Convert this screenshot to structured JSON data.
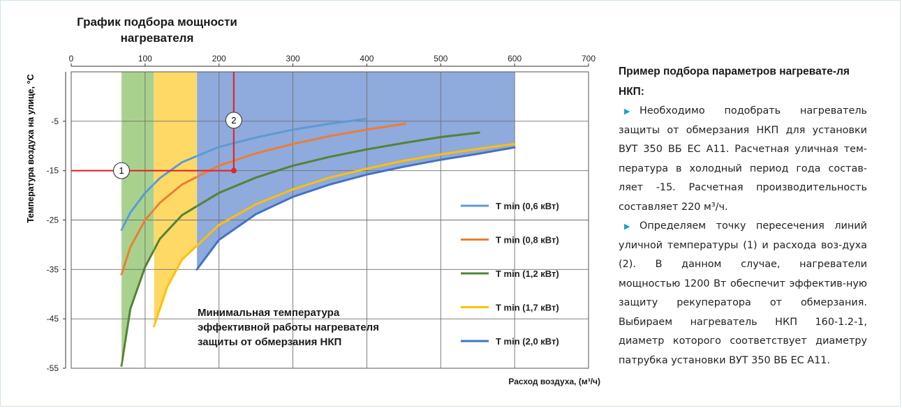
{
  "chart_data": {
    "type": "area",
    "title_lines": [
      "График подбора мощности",
      "нагревателя"
    ],
    "xlabel": "Расход воздуха, (м³/ч)",
    "ylabel": "Температура воздуха на улице, °С",
    "xlim": [
      0,
      700
    ],
    "ylim": [
      -55,
      5
    ],
    "x_ticks": [
      "0",
      "100",
      "200",
      "300",
      "400",
      "500",
      "600",
      "700"
    ],
    "y_ticks": [
      "-5",
      "-15",
      "-25",
      "-35",
      "-45",
      "-55"
    ],
    "x_tick_values": [
      0,
      100,
      200,
      300,
      400,
      500,
      600,
      700
    ],
    "y_tick_values": [
      -5,
      -15,
      -25,
      -35,
      -45,
      -55
    ],
    "legend_position": "right",
    "series": [
      {
        "name": "T min (0,6 кВт)",
        "color": "#5b9bd5",
        "fill": "#a3c7e8",
        "x_max": 400,
        "x": [
          68,
          80,
          100,
          120,
          150,
          200,
          250,
          300,
          350,
          400
        ],
        "y": [
          -27,
          -23.5,
          -19.5,
          -16.5,
          -13.3,
          -10.2,
          -8.3,
          -6.7,
          -5.5,
          -4.5
        ]
      },
      {
        "name": "T min (0,8 кВт)",
        "color": "#ed7d31",
        "fill": "#f2b48a",
        "x_max": 452,
        "x": [
          68,
          80,
          100,
          120,
          150,
          200,
          250,
          300,
          350,
          400,
          452
        ],
        "y": [
          -36,
          -30.5,
          -25,
          -21.5,
          -17.8,
          -14,
          -11.5,
          -9.6,
          -8,
          -6.7,
          -5.5
        ]
      },
      {
        "name": "T min (1,2 кВт)",
        "color": "#548235",
        "fill": "#a9d18e",
        "x_max": 552,
        "x": [
          68,
          80,
          100,
          120,
          150,
          200,
          250,
          300,
          350,
          400,
          450,
          500,
          552
        ],
        "y": [
          -54.5,
          -43,
          -34.5,
          -28.8,
          -24,
          -19.5,
          -16.4,
          -14,
          -12.2,
          -10.7,
          -9.4,
          -8.2,
          -7.3
        ]
      },
      {
        "name": "T min (1,7 кВт)",
        "color": "#ffc000",
        "fill": "#ffd966",
        "x_max": 600,
        "x": [
          112,
          130,
          150,
          200,
          250,
          300,
          350,
          400,
          450,
          500,
          550,
          600
        ],
        "y": [
          -46.5,
          -38.5,
          -33,
          -26,
          -21.8,
          -18.8,
          -16.4,
          -14.6,
          -13,
          -11.7,
          -10.6,
          -9.6
        ]
      },
      {
        "name": "T min (2,0 кВт)",
        "color": "#4472c4",
        "fill": "#8faadc",
        "x_max": 600,
        "x": [
          170,
          200,
          250,
          300,
          350,
          400,
          450,
          500,
          550,
          600
        ],
        "y": [
          -35,
          -29,
          -23.8,
          -20.3,
          -17.8,
          -15.8,
          -14.2,
          -12.8,
          -11.6,
          -10.3
        ]
      }
    ],
    "vertical_edges": [
      {
        "x": 68,
        "y_bottom": -54.5
      },
      {
        "x": 112,
        "y_bottom": -46.5
      },
      {
        "x": 170,
        "y_bottom": -35
      }
    ],
    "example": {
      "temp_line_y": -15,
      "flow_line_x": 220,
      "marker_temp": "1",
      "marker_temp_x": 68,
      "marker_flow": "2",
      "marker_flow_y": -4.8,
      "line_color": "#e0262a"
    },
    "annotation_lines": [
      "Минимальная температура",
      "эффективной работы нагревателя",
      "защиты от обмерзания НКП"
    ]
  },
  "sidebar": {
    "title": "Пример подбора параметров нагревате-ля НКП:",
    "paragraph1": "Необходимо подобрать нагреватель защиты от обмерзания НКП для установки ВУТ 350 ВБ ЕС A11. Расчетная уличная тем-пература в холодный период года состав-ляет -15. Расчетная производительность составляет 220 м³/ч.",
    "paragraph2": "Определяем точку пересечения линий уличной температуры (1) и расхода воз-духа (2). В данном случае, нагреватели мощностью 1200 Вт обеспечит эффектив-ную защиту рекуператора от обмерзания. Выбираем нагреватель НКП 160-1.2-1, диаметр которого соответствует диаметру патрубка установки ВУТ 350 ВБ ЕС A11.",
    "bullet_icon": "triangle-right-icon",
    "bullet_color": "#1aa0d0"
  }
}
